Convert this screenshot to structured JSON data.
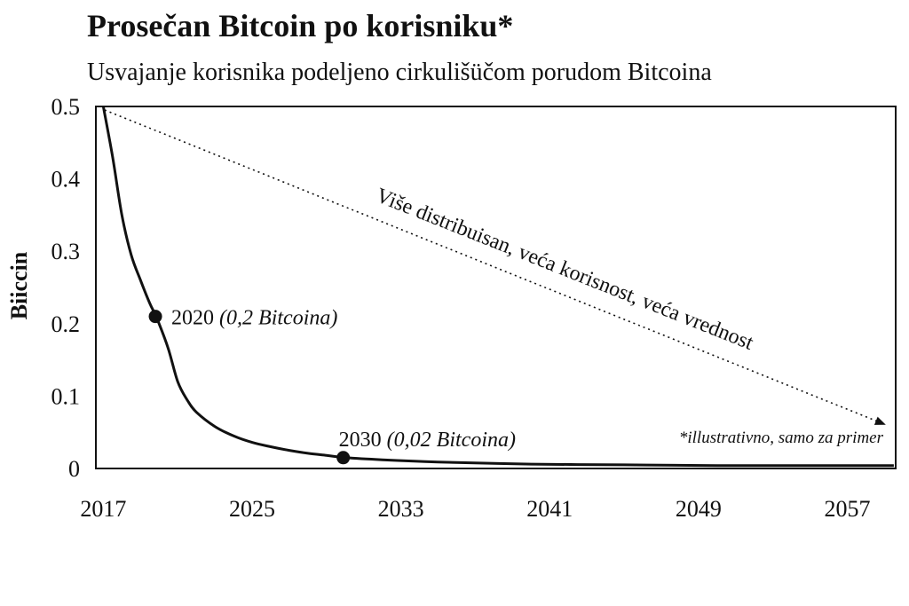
{
  "chart_data": {
    "type": "line",
    "title": "Prosečan Bitcoin po korisniku*",
    "subtitle": "Usvajanje korisnika podeljeno cirkulišüčom porudom Bitcoina",
    "xlabel": "",
    "ylabel": "Biiccin",
    "xlim": [
      2016.6,
      2059.6
    ],
    "ylim": [
      0,
      0.5
    ],
    "x_ticks": [
      "2017",
      "2025",
      "2033",
      "2041",
      "2049",
      "2057"
    ],
    "y_ticks": [
      "0",
      "0.1",
      "0.2",
      "0.3",
      "0.4",
      "0.5"
    ],
    "grid": false,
    "series": [
      {
        "x": [
          2017,
          2017.5,
          2018,
          2018.5,
          2019,
          2019.5,
          2019.75,
          2020,
          2020.5,
          2021,
          2021.5,
          2022,
          2023,
          2024,
          2025,
          2026,
          2027,
          2028,
          2029,
          2030,
          2032,
          2035,
          2040,
          2045,
          2050,
          2055,
          2059.5
        ],
        "values": [
          0.5,
          0.43,
          0.35,
          0.295,
          0.26,
          0.228,
          0.215,
          0.2,
          0.165,
          0.12,
          0.095,
          0.078,
          0.058,
          0.045,
          0.036,
          0.03,
          0.025,
          0.021,
          0.018,
          0.015,
          0.012,
          0.009,
          0.006,
          0.005,
          0.004,
          0.004,
          0.004
        ]
      }
    ],
    "markers": [
      {
        "x": 2019.8,
        "y": 0.21,
        "year": "2020",
        "value_text": "(0,2 Bitcoina)"
      },
      {
        "x": 2029.9,
        "y": 0.015,
        "year": "2030",
        "value_text": "(0,02 Bitcoina)"
      }
    ],
    "trend_annotation": "Više distribuisan, veća korisnost, veća vrednost",
    "footnote": "*illustrativno, samo za primer"
  }
}
